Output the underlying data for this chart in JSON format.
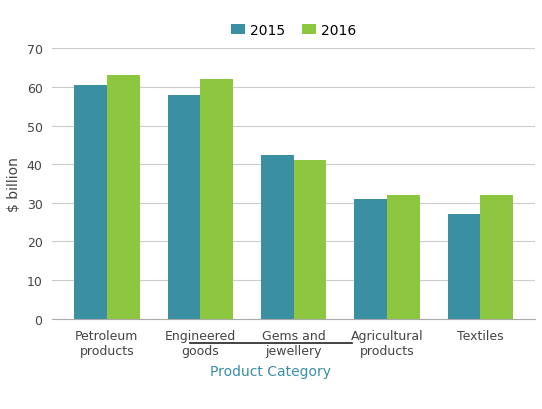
{
  "categories": [
    "Petroleum\nproducts",
    "Engineered\ngoods",
    "Gems and\njewellery",
    "Agricultural\nproducts",
    "Textiles"
  ],
  "values_2015": [
    60.5,
    58.0,
    42.5,
    31.0,
    27.0
  ],
  "values_2016": [
    63.0,
    62.0,
    41.0,
    32.0,
    32.0
  ],
  "color_2015": "#3a8fa3",
  "color_2016": "#8dc63f",
  "ylabel": "$ billion",
  "xlabel": "Product Category",
  "xlabel_color": "#3a8fa3",
  "ylim": [
    0,
    70
  ],
  "yticks": [
    0,
    10,
    20,
    30,
    40,
    50,
    60,
    70
  ],
  "legend_labels": [
    "2015",
    "2016"
  ],
  "bar_width": 0.35,
  "background_color": "#ffffff",
  "grid_color": "#cccccc",
  "spine_color": "#aaaaaa",
  "tick_color": "#444444",
  "ylabel_color": "#444444",
  "overline_color": "#222222",
  "font_size_ticks": 9,
  "font_size_ylabel": 10,
  "font_size_xlabel": 10,
  "font_size_legend": 10
}
